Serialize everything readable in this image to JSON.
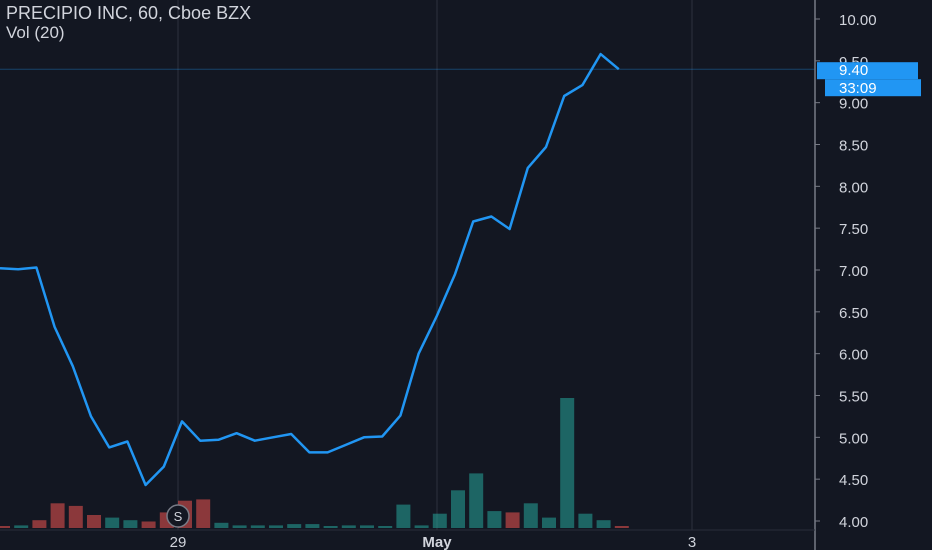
{
  "header": {
    "title": "PRECIPIO INC, 60, Cboe BZX",
    "volume_label": "Vol (20)"
  },
  "price_labels": {
    "last_price": "9.40",
    "countdown": "33:09"
  },
  "events": {
    "split_marker": "S"
  },
  "colors": {
    "background": "#131722",
    "grid": "#2a2e39",
    "line": "#2196f3",
    "vol_up": "#26a69a",
    "vol_down": "#ef5350",
    "axis_text": "#d1d4dc",
    "price_tag": "#2196f3"
  },
  "chart_data": {
    "type": "line",
    "title": "PRECIPIO INC, 60, Cboe BZX",
    "x_tick_labels": [
      "29",
      "May",
      "3"
    ],
    "y_tick_labels": [
      "4.00",
      "4.50",
      "5.00",
      "5.50",
      "6.00",
      "6.50",
      "7.00",
      "7.50",
      "8.00",
      "8.50",
      "9.00",
      "9.50",
      "10.00"
    ],
    "ylim": [
      3.9,
      10.1
    ],
    "grid": true,
    "series": [
      {
        "values": [
          7.02,
          7.01,
          7.03,
          6.32,
          5.85,
          5.25,
          4.88,
          4.95,
          4.43,
          4.65,
          5.19,
          4.96,
          4.97,
          5.05,
          4.96,
          5.0,
          5.04,
          4.82,
          4.82,
          4.91,
          5.0,
          5.01,
          5.26,
          6.0,
          6.45,
          6.95,
          7.58,
          7.64,
          7.49,
          8.22,
          8.47,
          9.08,
          9.21,
          9.58,
          9.4
        ]
      }
    ],
    "volume": {
      "values": [
        0.01,
        0.02,
        0.06,
        0.19,
        0.17,
        0.1,
        0.08,
        0.06,
        0.05,
        0.12,
        0.21,
        0.22,
        0.04,
        0.02,
        0.02,
        0.02,
        0.03,
        0.03,
        0.01,
        0.02,
        0.02,
        0.01,
        0.18,
        0.02,
        0.11,
        0.29,
        0.42,
        0.13,
        0.12,
        0.19,
        0.08,
        1.0,
        0.11,
        0.06,
        0.01
      ],
      "direction": [
        "down",
        "up",
        "down",
        "down",
        "down",
        "down",
        "up",
        "up",
        "down",
        "down",
        "down",
        "down",
        "up",
        "up",
        "up",
        "up",
        "up",
        "up",
        "up",
        "up",
        "up",
        "up",
        "up",
        "up",
        "up",
        "up",
        "up",
        "up",
        "down",
        "up",
        "up",
        "up",
        "up",
        "up",
        "down"
      ]
    },
    "current_price": 9.4
  }
}
